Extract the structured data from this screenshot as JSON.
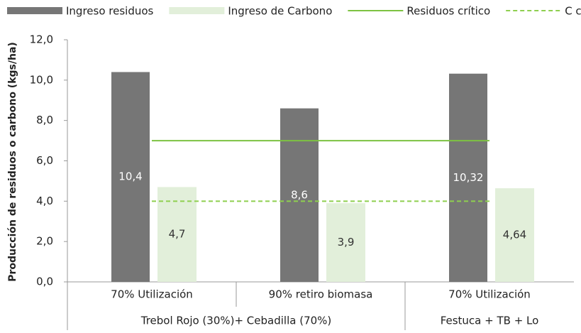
{
  "chart_data": {
    "type": "bar",
    "y_label": "Producción de residuos o carbono (kgs/ha)",
    "categories": [
      "70% Utilización",
      "90% retiro biomasa",
      "70% Utilización"
    ],
    "group_labels": [
      "Trebol Rojo (30%)+ Cebadilla (70%)",
      null,
      "Festuca + TB + Lo"
    ],
    "series": [
      {
        "name": "Ingreso residuos",
        "type": "bar",
        "color": "#767676",
        "values": [
          10.4,
          8.6,
          10.32
        ],
        "value_labels": [
          "10,4",
          "8,6",
          "10,32"
        ],
        "label_color": "#ffffff"
      },
      {
        "name": "Ingreso de Carbono",
        "type": "bar",
        "color": "#e2efda",
        "values": [
          4.7,
          3.9,
          4.64
        ],
        "value_labels": [
          "4,7",
          "3,9",
          "4,64"
        ],
        "label_color": "#333333"
      },
      {
        "name": "Residuos crítico",
        "type": "line",
        "color": "#7dc242",
        "dashed": false,
        "values": [
          7,
          7,
          7
        ]
      },
      {
        "name": "C crítico",
        "type": "line",
        "color": "#8fcf4f",
        "dashed": true,
        "values": [
          4,
          4,
          4
        ]
      }
    ],
    "ylim": [
      0,
      12
    ],
    "yticks": [
      {
        "value": 0,
        "label": "0,0"
      },
      {
        "value": 2,
        "label": "2,0"
      },
      {
        "value": 4,
        "label": "4,0"
      },
      {
        "value": 6,
        "label": "6,0"
      },
      {
        "value": 8,
        "label": "8,0"
      },
      {
        "value": 10,
        "label": "10,0"
      },
      {
        "value": 12,
        "label": "12,0"
      }
    ],
    "grid": false
  }
}
